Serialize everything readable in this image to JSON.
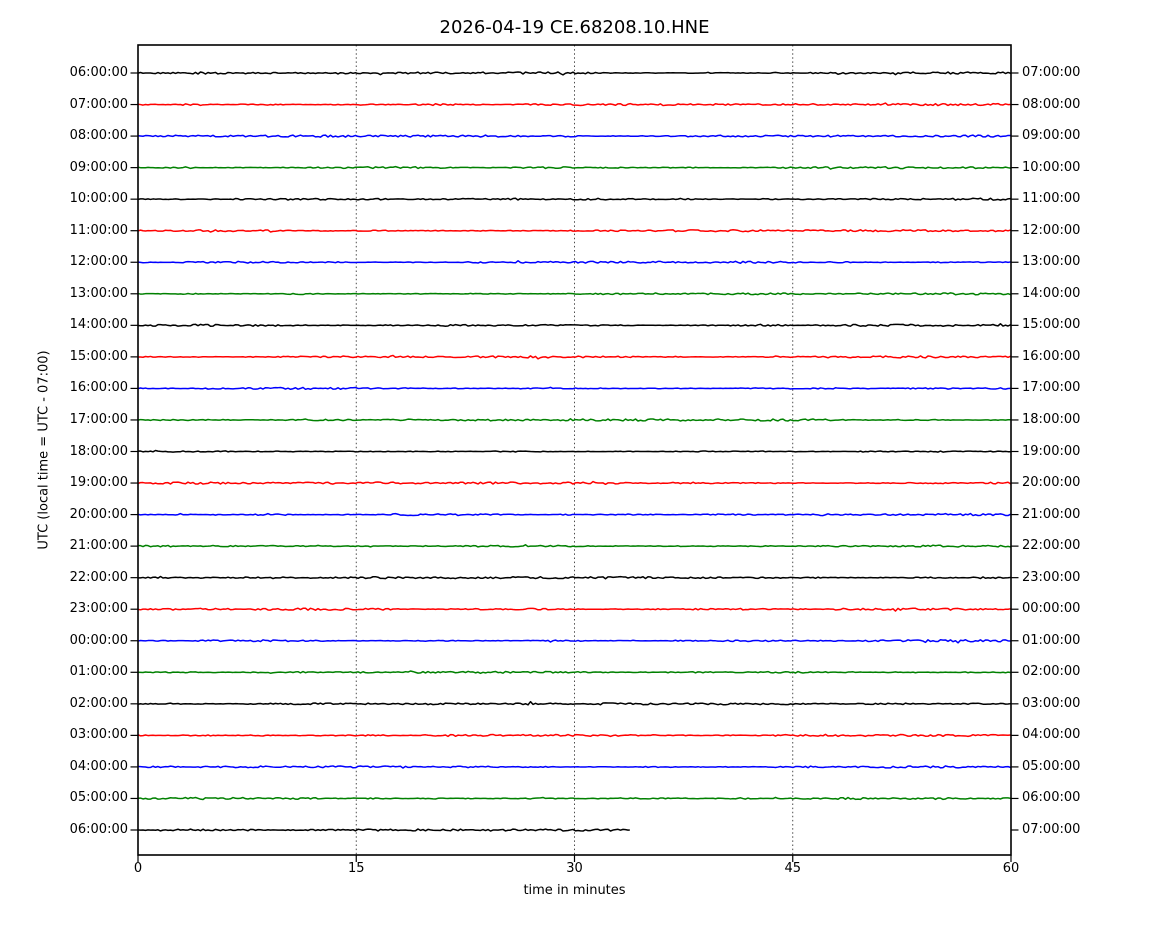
{
  "chart_data": {
    "type": "line",
    "subtype": "helicorder-dayplot",
    "title": "2026-04-19 CE.68208.10.HNE",
    "xlabel": "time in minutes",
    "ylabel_left": "UTC (local time = UTC - 07:00)",
    "xlim": [
      0,
      60
    ],
    "xticks": [
      0,
      15,
      30,
      45,
      60
    ],
    "grid_x": [
      15,
      30,
      45
    ],
    "grid_style": "dotted-vertical",
    "legend": "none",
    "trace_color_cycle": [
      "#000000",
      "#ff0000",
      "#0000ff",
      "#008000"
    ],
    "trace_description": "flat low-amplitude noise traces, one hour per row",
    "rows": [
      {
        "utc_label": "06:00:00",
        "right_label": "07:00:00",
        "color": "#000000",
        "start_min": 0,
        "end_min": 60
      },
      {
        "utc_label": "07:00:00",
        "right_label": "08:00:00",
        "color": "#ff0000",
        "start_min": 0,
        "end_min": 60
      },
      {
        "utc_label": "08:00:00",
        "right_label": "09:00:00",
        "color": "#0000ff",
        "start_min": 0,
        "end_min": 60
      },
      {
        "utc_label": "09:00:00",
        "right_label": "10:00:00",
        "color": "#008000",
        "start_min": 0,
        "end_min": 60
      },
      {
        "utc_label": "10:00:00",
        "right_label": "11:00:00",
        "color": "#000000",
        "start_min": 0,
        "end_min": 60
      },
      {
        "utc_label": "11:00:00",
        "right_label": "12:00:00",
        "color": "#ff0000",
        "start_min": 0,
        "end_min": 60
      },
      {
        "utc_label": "12:00:00",
        "right_label": "13:00:00",
        "color": "#0000ff",
        "start_min": 0,
        "end_min": 60
      },
      {
        "utc_label": "13:00:00",
        "right_label": "14:00:00",
        "color": "#008000",
        "start_min": 0,
        "end_min": 60
      },
      {
        "utc_label": "14:00:00",
        "right_label": "15:00:00",
        "color": "#000000",
        "start_min": 0,
        "end_min": 60
      },
      {
        "utc_label": "15:00:00",
        "right_label": "16:00:00",
        "color": "#ff0000",
        "start_min": 0,
        "end_min": 60
      },
      {
        "utc_label": "16:00:00",
        "right_label": "17:00:00",
        "color": "#0000ff",
        "start_min": 0,
        "end_min": 60
      },
      {
        "utc_label": "17:00:00",
        "right_label": "18:00:00",
        "color": "#008000",
        "start_min": 0,
        "end_min": 60
      },
      {
        "utc_label": "18:00:00",
        "right_label": "19:00:00",
        "color": "#000000",
        "start_min": 0,
        "end_min": 60
      },
      {
        "utc_label": "19:00:00",
        "right_label": "20:00:00",
        "color": "#ff0000",
        "start_min": 0,
        "end_min": 60
      },
      {
        "utc_label": "20:00:00",
        "right_label": "21:00:00",
        "color": "#0000ff",
        "start_min": 0,
        "end_min": 60
      },
      {
        "utc_label": "21:00:00",
        "right_label": "22:00:00",
        "color": "#008000",
        "start_min": 0,
        "end_min": 60
      },
      {
        "utc_label": "22:00:00",
        "right_label": "23:00:00",
        "color": "#000000",
        "start_min": 0,
        "end_min": 60
      },
      {
        "utc_label": "23:00:00",
        "right_label": "00:00:00",
        "color": "#ff0000",
        "start_min": 0,
        "end_min": 60
      },
      {
        "utc_label": "00:00:00",
        "right_label": "01:00:00",
        "color": "#0000ff",
        "start_min": 0,
        "end_min": 60
      },
      {
        "utc_label": "01:00:00",
        "right_label": "02:00:00",
        "color": "#008000",
        "start_min": 0,
        "end_min": 60
      },
      {
        "utc_label": "02:00:00",
        "right_label": "03:00:00",
        "color": "#000000",
        "start_min": 0,
        "end_min": 60
      },
      {
        "utc_label": "03:00:00",
        "right_label": "04:00:00",
        "color": "#ff0000",
        "start_min": 0,
        "end_min": 60
      },
      {
        "utc_label": "04:00:00",
        "right_label": "05:00:00",
        "color": "#0000ff",
        "start_min": 0,
        "end_min": 60
      },
      {
        "utc_label": "05:00:00",
        "right_label": "06:00:00",
        "color": "#008000",
        "start_min": 0,
        "end_min": 60
      },
      {
        "utc_label": "06:00:00",
        "right_label": "07:00:00",
        "color": "#000000",
        "start_min": 0,
        "end_min": 33.8
      }
    ]
  }
}
